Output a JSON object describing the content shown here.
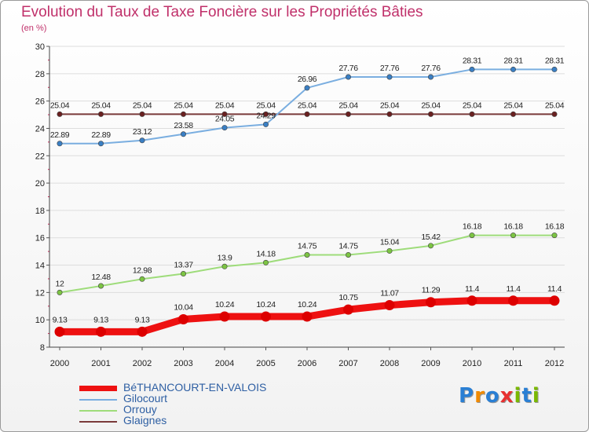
{
  "chart_data": {
    "type": "line",
    "title": "Evolution du Taux de Taxe Foncière sur les Propriétés Bâties",
    "unit_label": "(en %)",
    "xlabel": "",
    "ylabel": "",
    "x": [
      "2000",
      "2001",
      "2002",
      "2003",
      "2004",
      "2005",
      "2006",
      "2007",
      "2008",
      "2009",
      "2010",
      "2011",
      "2012"
    ],
    "ylim": [
      8,
      30
    ],
    "yticks": [
      8,
      10,
      12,
      14,
      16,
      18,
      20,
      22,
      24,
      26,
      28,
      30
    ],
    "grid": "horizontal",
    "legend_position": "bottom-left",
    "series": [
      {
        "name": "BéTHANCOURT-EN-VALOIS",
        "color": "#ee1111",
        "marker": "#dd0000",
        "width": 9,
        "values": [
          9.13,
          9.13,
          9.13,
          10.04,
          10.24,
          10.24,
          10.24,
          10.75,
          11.07,
          11.29,
          11.4,
          11.4,
          11.4
        ],
        "labels": [
          "9.13",
          "9.13",
          "9.13",
          "10.04",
          "10.24",
          "10.24",
          "10.24",
          "10.75",
          "11.07",
          "11.29",
          "11.4",
          "11.4",
          "11.4"
        ]
      },
      {
        "name": "Gilocourt",
        "color": "#7aaee0",
        "marker": "#3a7fc4",
        "width": 2,
        "values": [
          22.89,
          22.89,
          23.12,
          23.58,
          24.05,
          24.29,
          26.96,
          27.76,
          27.76,
          27.76,
          28.31,
          28.31,
          28.31
        ],
        "labels": [
          "22.89",
          "22.89",
          "23.12",
          "23.58",
          "24.05",
          "24.29",
          "26.96",
          "27.76",
          "27.76",
          "27.76",
          "28.31",
          "28.31",
          "28.31"
        ]
      },
      {
        "name": "Orrouy",
        "color": "#9edc7a",
        "marker": "#7cc443",
        "width": 2,
        "values": [
          12,
          12.48,
          12.98,
          13.37,
          13.9,
          14.18,
          14.75,
          14.75,
          15.04,
          15.42,
          16.18,
          16.18,
          16.18
        ],
        "labels": [
          "12",
          "12.48",
          "12.98",
          "13.37",
          "13.9",
          "14.18",
          "14.75",
          "14.75",
          "15.04",
          "15.42",
          "16.18",
          "16.18",
          "16.18"
        ]
      },
      {
        "name": "Glaignes",
        "color": "#7a3a3a",
        "marker": "#6a2020",
        "width": 2,
        "values": [
          25.04,
          25.04,
          25.04,
          25.04,
          25.04,
          25.04,
          25.04,
          25.04,
          25.04,
          25.04,
          25.04,
          25.04,
          25.04
        ],
        "labels": [
          "25.04",
          "25.04",
          "25.04",
          "25.04",
          "25.04",
          "25.04",
          "25.04",
          "25.04",
          "25.04",
          "25.04",
          "25.04",
          "25.04",
          "25.04"
        ]
      }
    ]
  },
  "logo": {
    "letters": [
      "P",
      "r",
      "o",
      "x",
      "i",
      "t",
      "i"
    ],
    "colors": [
      "#2a7fd4",
      "#f08a00",
      "#2a7fd4",
      "#e83030",
      "#7ab800",
      "#2a7fd4",
      "#7ab800"
    ]
  }
}
